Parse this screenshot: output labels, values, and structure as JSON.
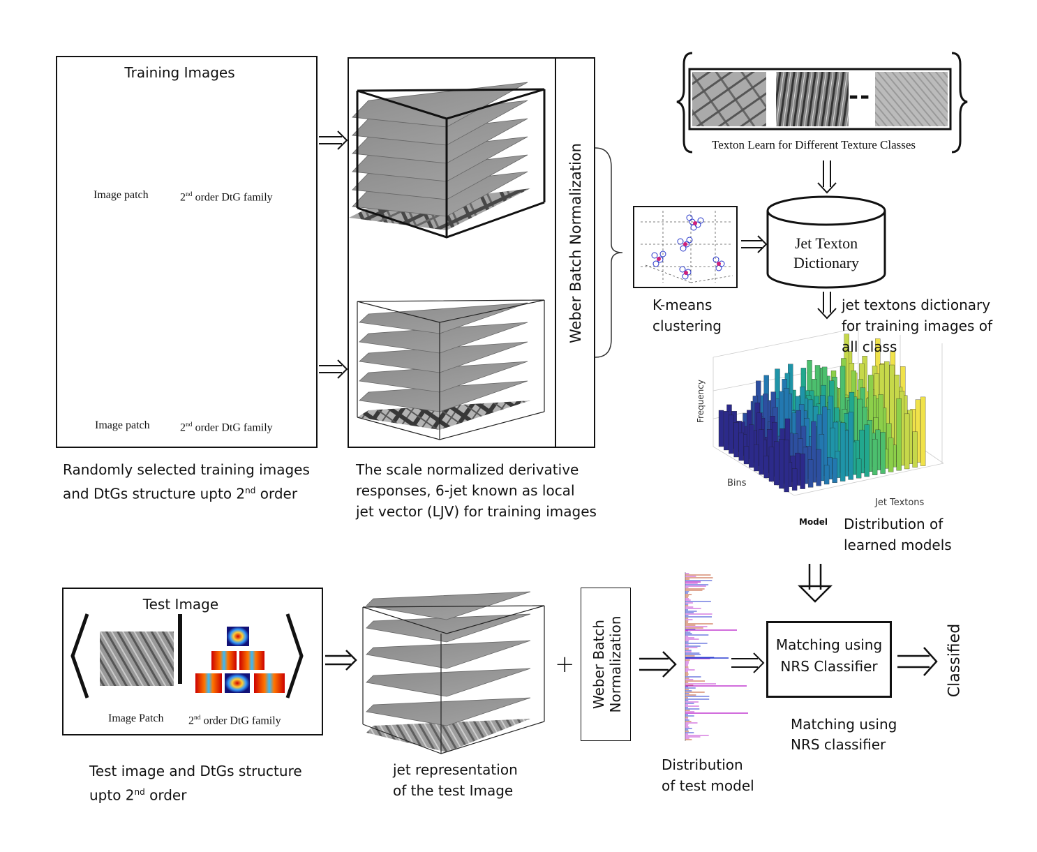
{
  "training": {
    "title": "Training Images",
    "patch_label": "Image patch",
    "dtg_label_pre": "2",
    "dtg_label_sup": "nd",
    "dtg_label_post": " order DtG family",
    "caption_line1": "Randomly selected training images",
    "caption_line2_pre": "and DtGs structure upto 2",
    "caption_line2_sup": "nd",
    "caption_line2_post": " order"
  },
  "jet_stack": {
    "weber_label": "Weber Batch Normalization",
    "caption_lines": [
      "The scale normalized derivative",
      "responses, 6-jet known as local",
      "jet vector (LJV) for training images"
    ]
  },
  "texton_learn": {
    "label": "Texton Learn for Different Texture Classes",
    "separator": "--"
  },
  "kmeans": {
    "caption_lines": [
      "K-means",
      "clustering"
    ]
  },
  "dictionary": {
    "label_lines": [
      "Jet Texton",
      "Dictionary"
    ],
    "caption_lines": [
      "jet textons dictionary",
      "for training images of",
      "all class"
    ]
  },
  "histogram3d": {
    "z_label": "Frequency",
    "x_label": "Bins",
    "y_label": "Jet Textons",
    "model_label": "Model",
    "caption_lines": [
      "Distribution of",
      "learned models"
    ]
  },
  "test": {
    "title": "Test Image",
    "patch_label": "Image Patch",
    "dtg_label_pre": "2",
    "dtg_label_sup": "nd",
    "dtg_label_post": " order DtG family",
    "caption_line1": "Test image and DtGs structure",
    "caption_line2_pre": "upto 2",
    "caption_line2_sup": "nd",
    "caption_line2_post": "  order",
    "jet_caption_lines": [
      "jet representation",
      "of the test Image"
    ],
    "plus": "+",
    "weber_lines": [
      "Weber Batch",
      "Normalization"
    ],
    "dist_caption_lines": [
      "Distribution",
      "of test model"
    ]
  },
  "matching": {
    "box_lines": [
      "Matching using",
      "NRS Classifier"
    ],
    "caption_lines": [
      "Matching using",
      "NRS classifier"
    ],
    "result": "Classified"
  },
  "colors": {
    "border": "#111111",
    "hist_low": "#3b2a8c",
    "hist_mid": "#1fa39a",
    "hist_high": "#f0e24a",
    "dist_magenta": "#c23bd0",
    "dist_orange": "#c0502a",
    "dist_blue": "#2a3bd0"
  }
}
